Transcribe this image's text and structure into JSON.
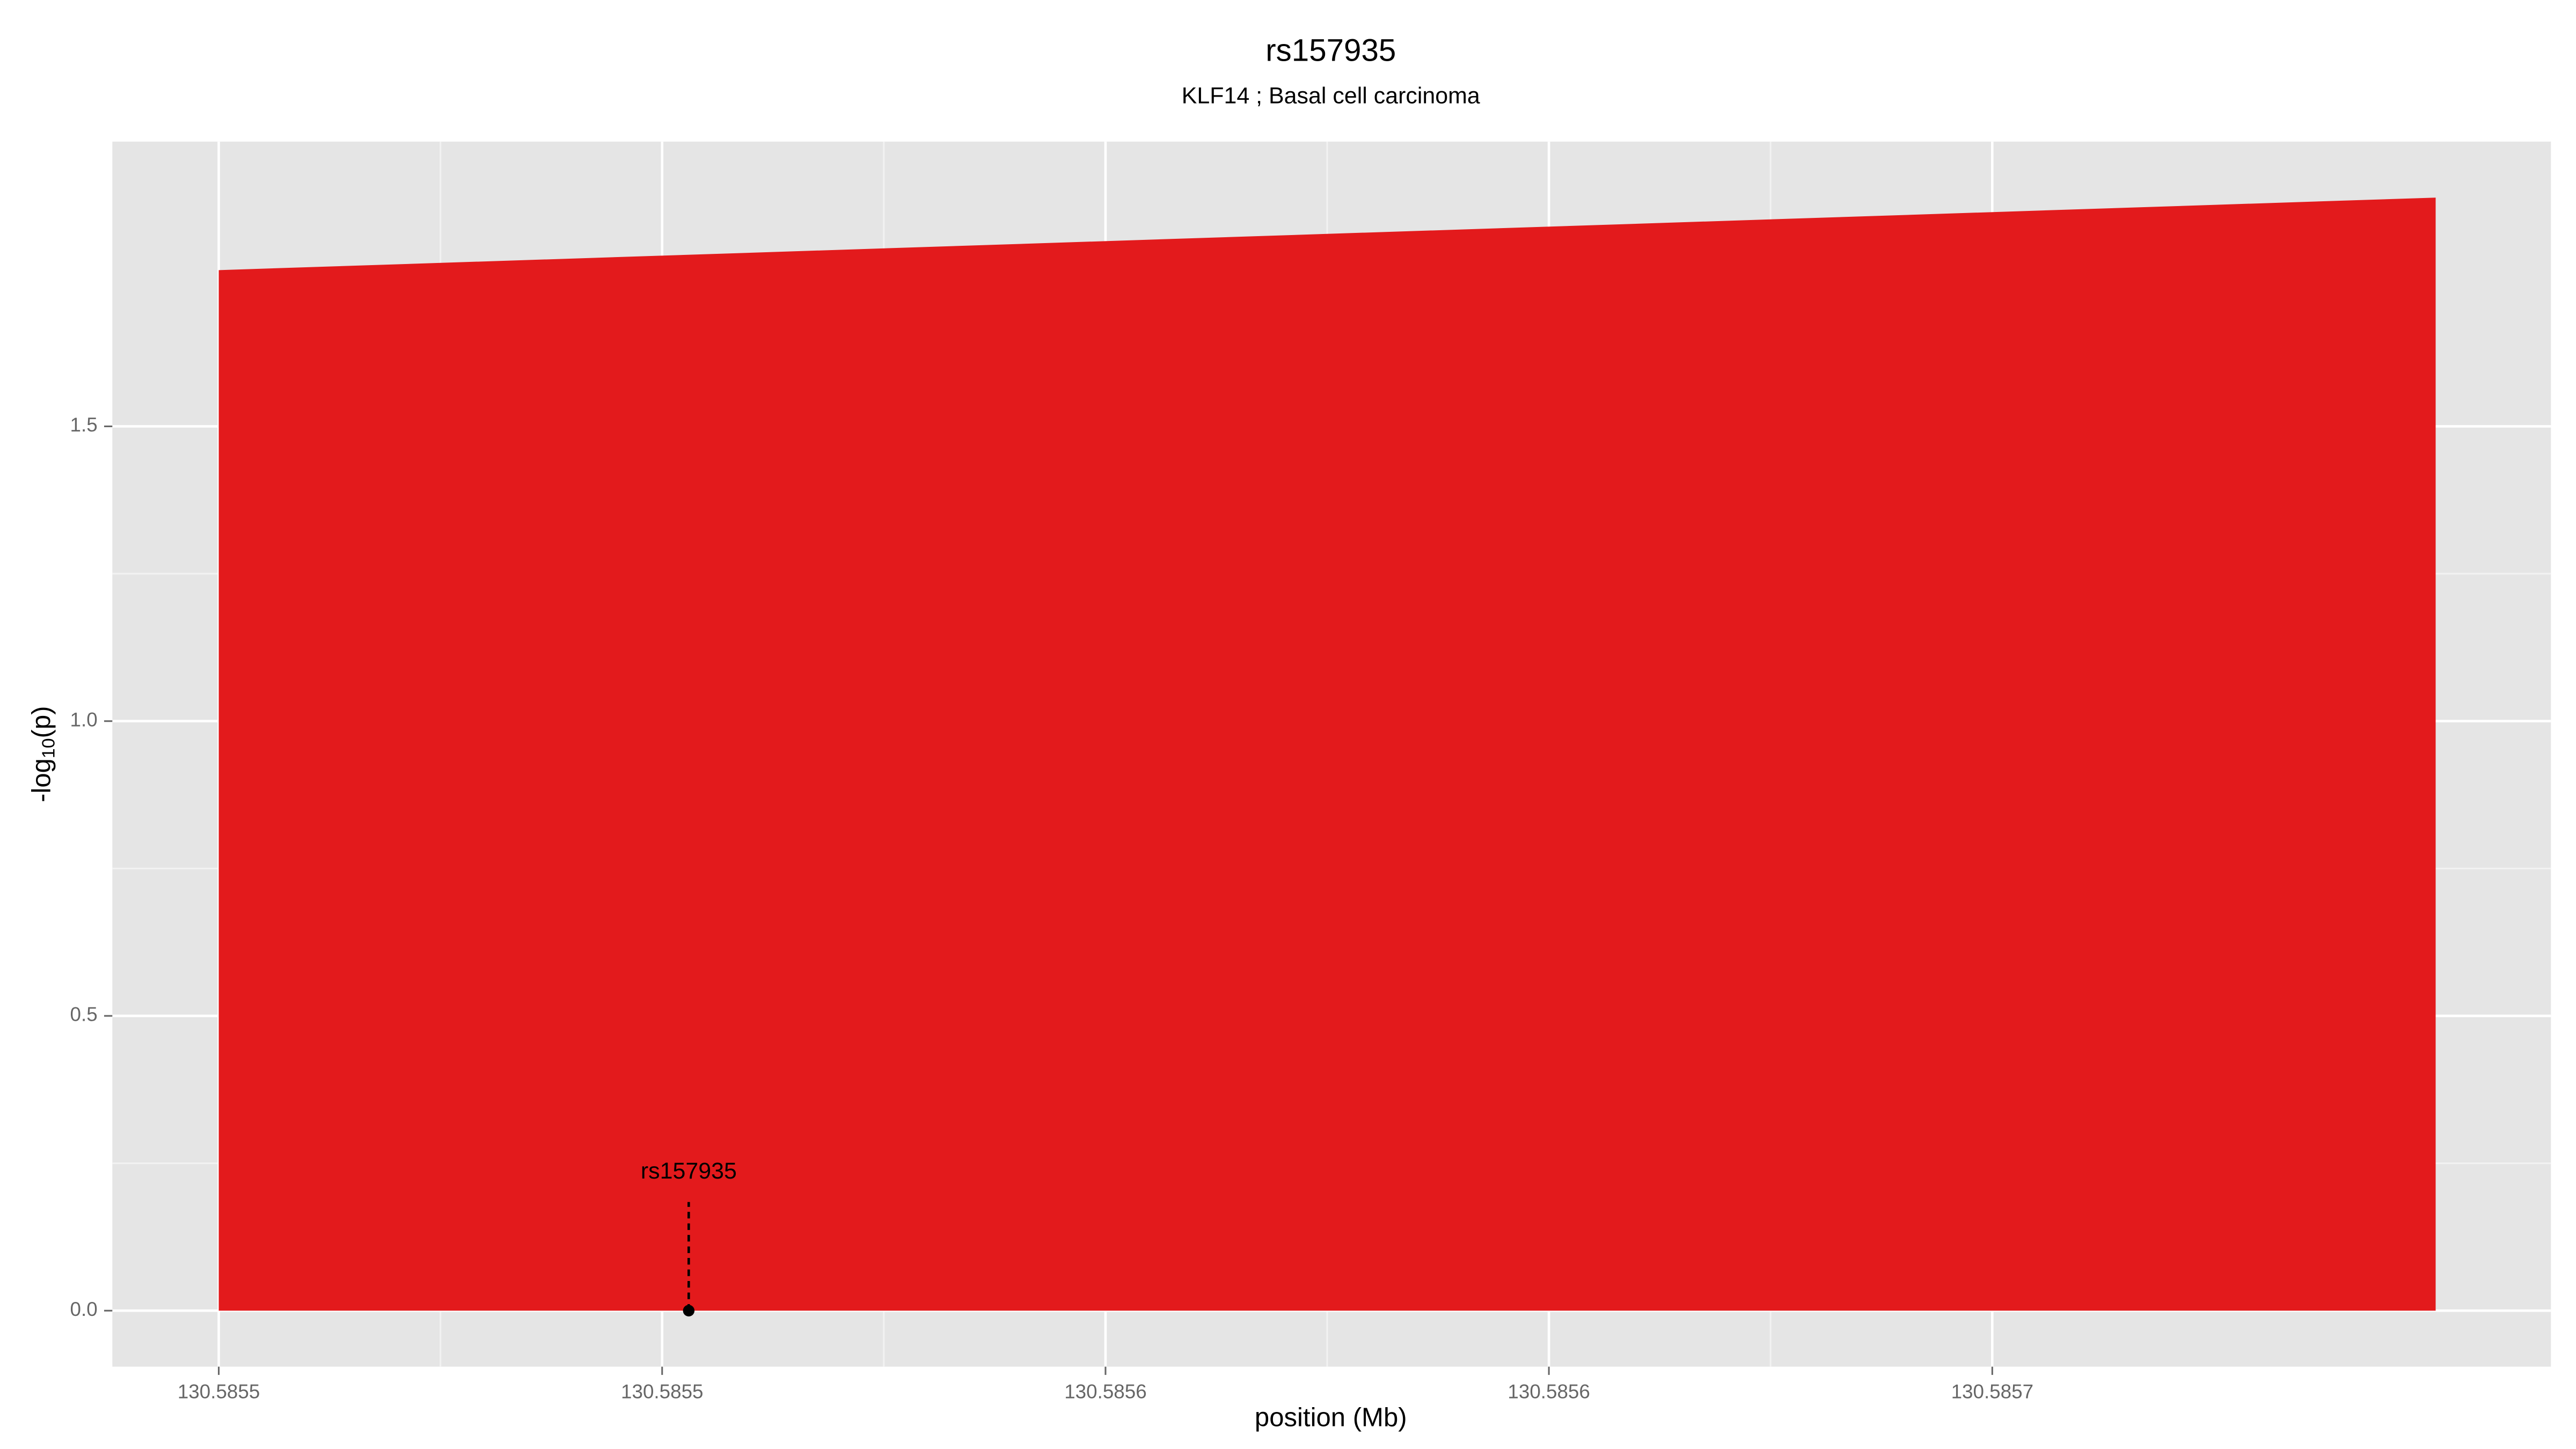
{
  "chart_data": {
    "type": "area",
    "title": "rs157935",
    "subtitle": "KLF14 ; Basal cell carcinoma",
    "xlabel": "position (Mb)",
    "ylabel": "-log10(p)",
    "x": [
      130.5855,
      130.58575
    ],
    "values": [
      1.765,
      1.888
    ],
    "color": "#e31a1c",
    "annotation": {
      "label": "rs157935",
      "x": 130.585553,
      "y": 0
    },
    "xlim": [
      130.585488,
      130.585763
    ],
    "xticks": [
      130.5855,
      {
        "value": 130.58555,
        "label": "130.5855"
      },
      {
        "value": 130.5856,
        "label": "130.5856"
      },
      {
        "value": 130.58565,
        "label": "130.5856"
      },
      {
        "value": 130.5857,
        "label": "130.5857"
      }
    ],
    "ylim": [
      -0.095,
      1.983
    ],
    "yticks": [
      {
        "value": 0,
        "label": "0.0"
      },
      0.5,
      {
        "value": 1,
        "label": "1.0"
      },
      1.5
    ],
    "grid": true
  }
}
